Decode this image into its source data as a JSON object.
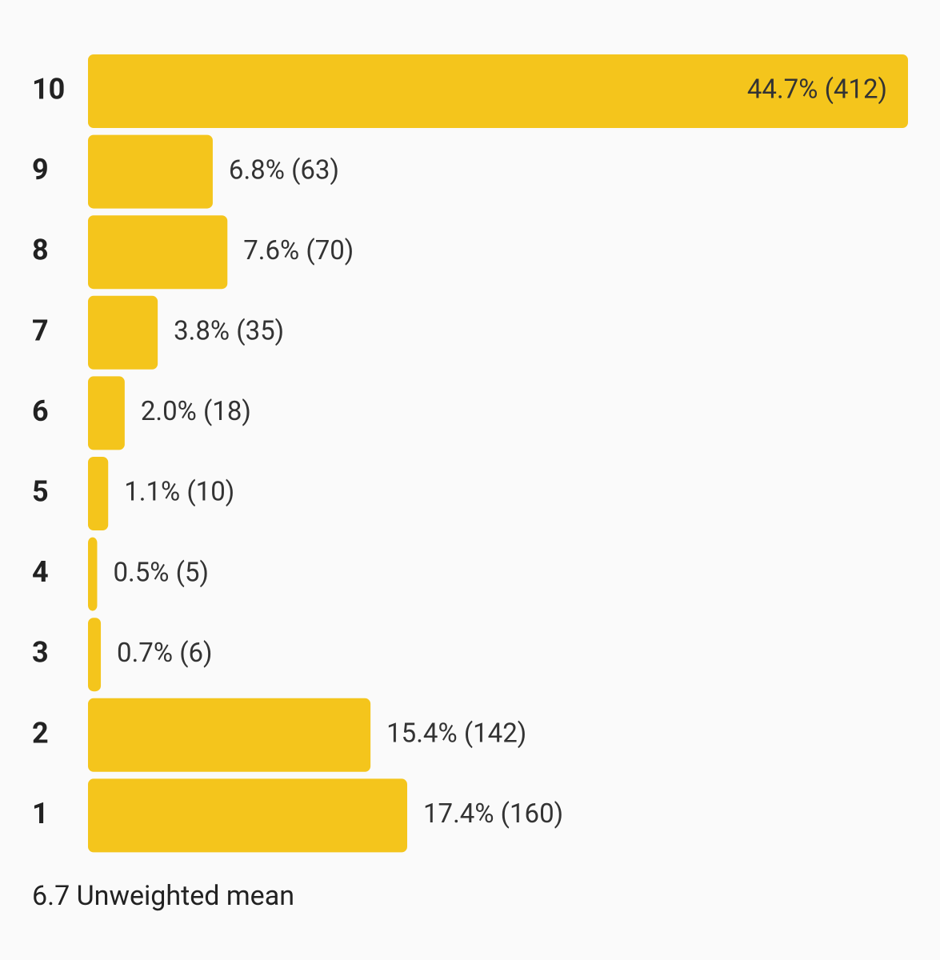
{
  "chart_data": {
    "type": "bar",
    "orientation": "horizontal",
    "categories": [
      "10",
      "9",
      "8",
      "7",
      "6",
      "5",
      "4",
      "3",
      "2",
      "1"
    ],
    "values": [
      44.7,
      6.8,
      7.6,
      3.8,
      2.0,
      1.1,
      0.5,
      0.7,
      15.4,
      17.4
    ],
    "value_labels": [
      "44.7% (412)",
      "6.8% (63)",
      "7.6% (70)",
      "3.8% (35)",
      "2.0% (18)",
      "1.1% (10)",
      "0.5% (5)",
      "0.7% (6)",
      "15.4% (142)",
      "17.4% (160)"
    ],
    "color": "#f4c51c",
    "footer": "6.7 Unweighted mean"
  }
}
